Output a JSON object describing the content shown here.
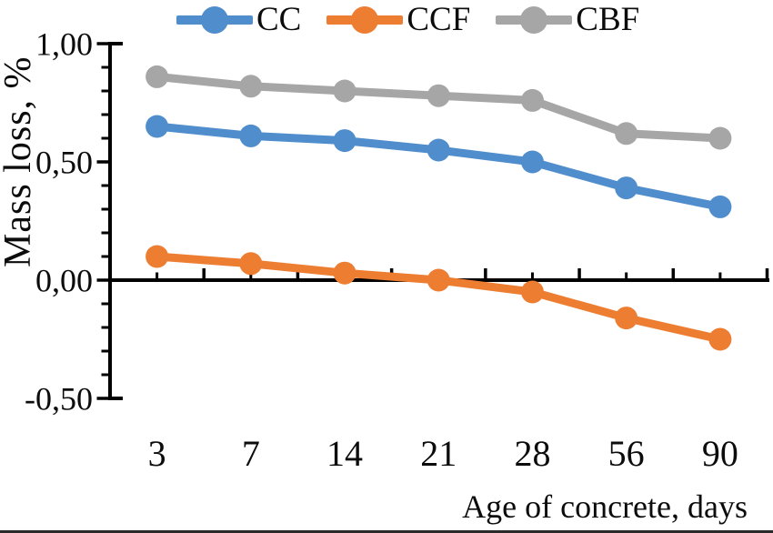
{
  "figure": {
    "background": "#ffffff",
    "axis_color": "#000000",
    "text_color": "#0c0c0c"
  },
  "chart_data": {
    "type": "line",
    "title": "",
    "xlabel": "Age of concrete, days",
    "ylabel": "Mass loss, %",
    "categories": [
      "3",
      "7",
      "14",
      "21",
      "28",
      "56",
      "90"
    ],
    "series": [
      {
        "name": "CC",
        "color": "#4f8dcc",
        "values": [
          0.65,
          0.61,
          0.59,
          0.55,
          0.5,
          0.39,
          0.31
        ]
      },
      {
        "name": "CCF",
        "color": "#ed7d31",
        "values": [
          0.1,
          0.07,
          0.03,
          0.0,
          -0.05,
          -0.16,
          -0.25
        ]
      },
      {
        "name": "CBF",
        "color": "#a6a6a6",
        "values": [
          0.86,
          0.82,
          0.8,
          0.78,
          0.76,
          0.62,
          0.6
        ]
      }
    ],
    "ylim": [
      -0.5,
      1.0
    ],
    "yticks": [
      {
        "value": 1.0,
        "label": "1,00"
      },
      {
        "value": 0.5,
        "label": "0,50"
      },
      {
        "value": 0.0,
        "label": "0,00"
      },
      {
        "value": -0.5,
        "label": "-0,50"
      }
    ],
    "y_minor_step": 0.1,
    "legend_position": "top",
    "legend_order": [
      "CC",
      "CCF",
      "CBF"
    ],
    "grid": false,
    "marker": "circle",
    "decimal_separator": ","
  }
}
